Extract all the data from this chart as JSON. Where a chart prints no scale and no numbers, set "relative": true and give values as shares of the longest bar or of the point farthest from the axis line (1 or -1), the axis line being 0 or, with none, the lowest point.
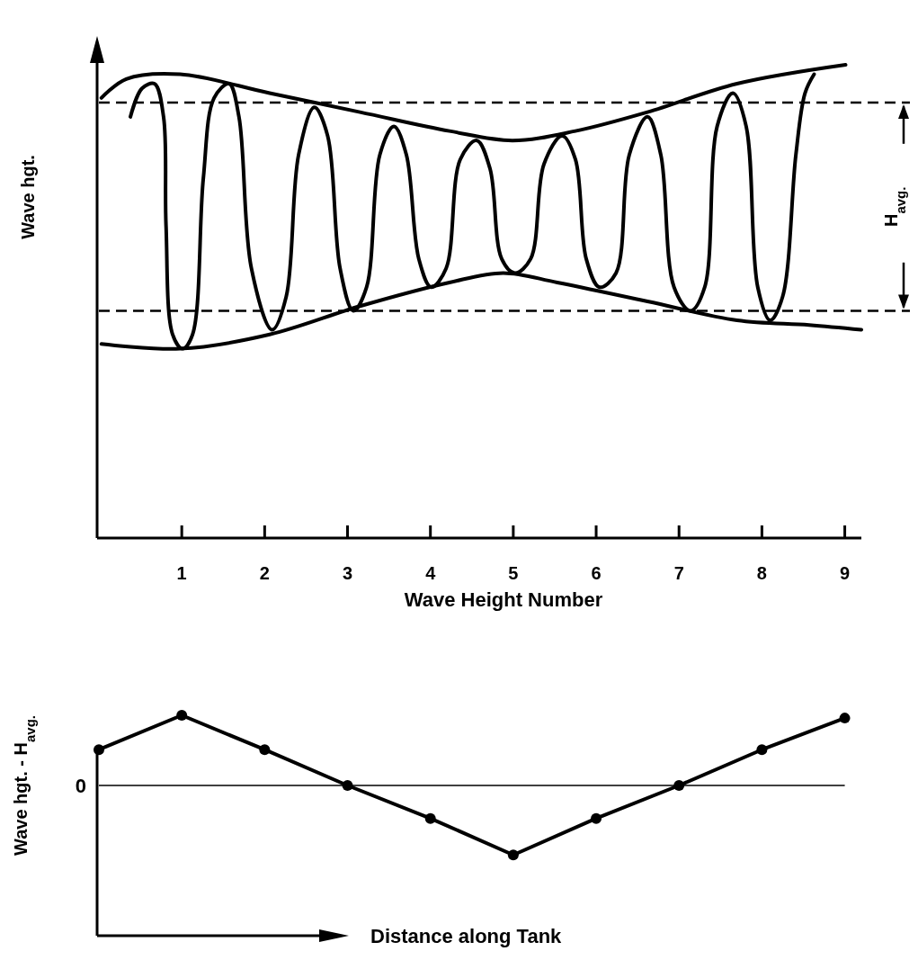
{
  "chart_data": [
    {
      "type": "line",
      "xlabel": "Wave Height Number",
      "ylabel": "Wave hgt.",
      "relative": true,
      "xlim": [
        0,
        9.2
      ],
      "xticks": [
        1,
        2,
        3,
        4,
        5,
        6,
        7,
        8,
        9
      ],
      "marker": "none",
      "grid": false,
      "annotations": [
        "H$_{avg.}$"
      ],
      "ref_lines": [
        {
          "axis": "y",
          "value": 0.92,
          "line_style": "dashed",
          "color": "#000000"
        },
        {
          "axis": "y",
          "value": 0.48,
          "line_style": "dashed",
          "color": "#000000"
        }
      ],
      "series": [
        {
          "color": "#000000",
          "line_style": "solid",
          "x": [
            0.38,
            0.52,
            0.67,
            0.78,
            0.81,
            0.89,
            1.01,
            1.13,
            1.26,
            1.39,
            1.57,
            1.69,
            1.84,
            2.09,
            2.26,
            2.41,
            2.6,
            2.76,
            2.91,
            3.07,
            3.23,
            3.39,
            3.56,
            3.71,
            3.86,
            4.01,
            4.19,
            4.36,
            4.56,
            4.72,
            4.86,
            5.02,
            5.21,
            5.37,
            5.59,
            5.75,
            5.88,
            6.04,
            6.24,
            6.4,
            6.62,
            6.78,
            6.94,
            7.14,
            7.31,
            7.46,
            7.65,
            7.81,
            7.95,
            8.1,
            8.25,
            8.41,
            8.52,
            8.63
          ],
          "values": [
            0.89,
            0.95,
            0.96,
            0.89,
            0.66,
            0.43,
            0.4,
            0.43,
            0.76,
            0.93,
            0.96,
            0.89,
            0.57,
            0.44,
            0.51,
            0.81,
            0.91,
            0.85,
            0.57,
            0.48,
            0.53,
            0.81,
            0.87,
            0.81,
            0.59,
            0.53,
            0.57,
            0.8,
            0.84,
            0.78,
            0.59,
            0.56,
            0.59,
            0.79,
            0.85,
            0.8,
            0.59,
            0.53,
            0.56,
            0.81,
            0.89,
            0.81,
            0.53,
            0.48,
            0.53,
            0.87,
            0.94,
            0.87,
            0.53,
            0.46,
            0.51,
            0.81,
            0.94,
            0.98
          ]
        },
        {
          "color": "#000000",
          "line_style": "solid",
          "x": [
            0.03,
            0.33,
            0.98,
            2.06,
            3.15,
            4.23,
            4.99,
            5.75,
            6.62,
            7.7,
            9.01
          ],
          "values": [
            0.93,
            0.97,
            0.98,
            0.94,
            0.9,
            0.86,
            0.84,
            0.86,
            0.9,
            0.96,
            1.0
          ]
        },
        {
          "color": "#000000",
          "line_style": "solid",
          "x": [
            0.03,
            0.98,
            2.06,
            3.15,
            4.23,
            4.88,
            5.53,
            6.62,
            7.7,
            8.57,
            9.2
          ],
          "values": [
            0.41,
            0.4,
            0.43,
            0.49,
            0.54,
            0.56,
            0.54,
            0.5,
            0.46,
            0.45,
            0.44
          ]
        }
      ]
    },
    {
      "type": "line",
      "xlabel": "Distance along Tank",
      "ylabel": "Wave hgt. - H$_{avg.}$",
      "relative": true,
      "marker": "circle",
      "categories": [
        null,
        null,
        null,
        null,
        null,
        null,
        null,
        null,
        null,
        null
      ],
      "grid": false,
      "ref_lines": [
        {
          "axis": "y",
          "value": 0,
          "label": "0",
          "line_style": "solid",
          "color": "#000000"
        }
      ],
      "series": [
        {
          "color": "#000000",
          "line_style": "solid",
          "values": [
            0.51,
            1.0,
            0.51,
            0,
            -0.47,
            -0.99,
            -0.47,
            0,
            0.51,
            0.96
          ]
        }
      ]
    }
  ]
}
